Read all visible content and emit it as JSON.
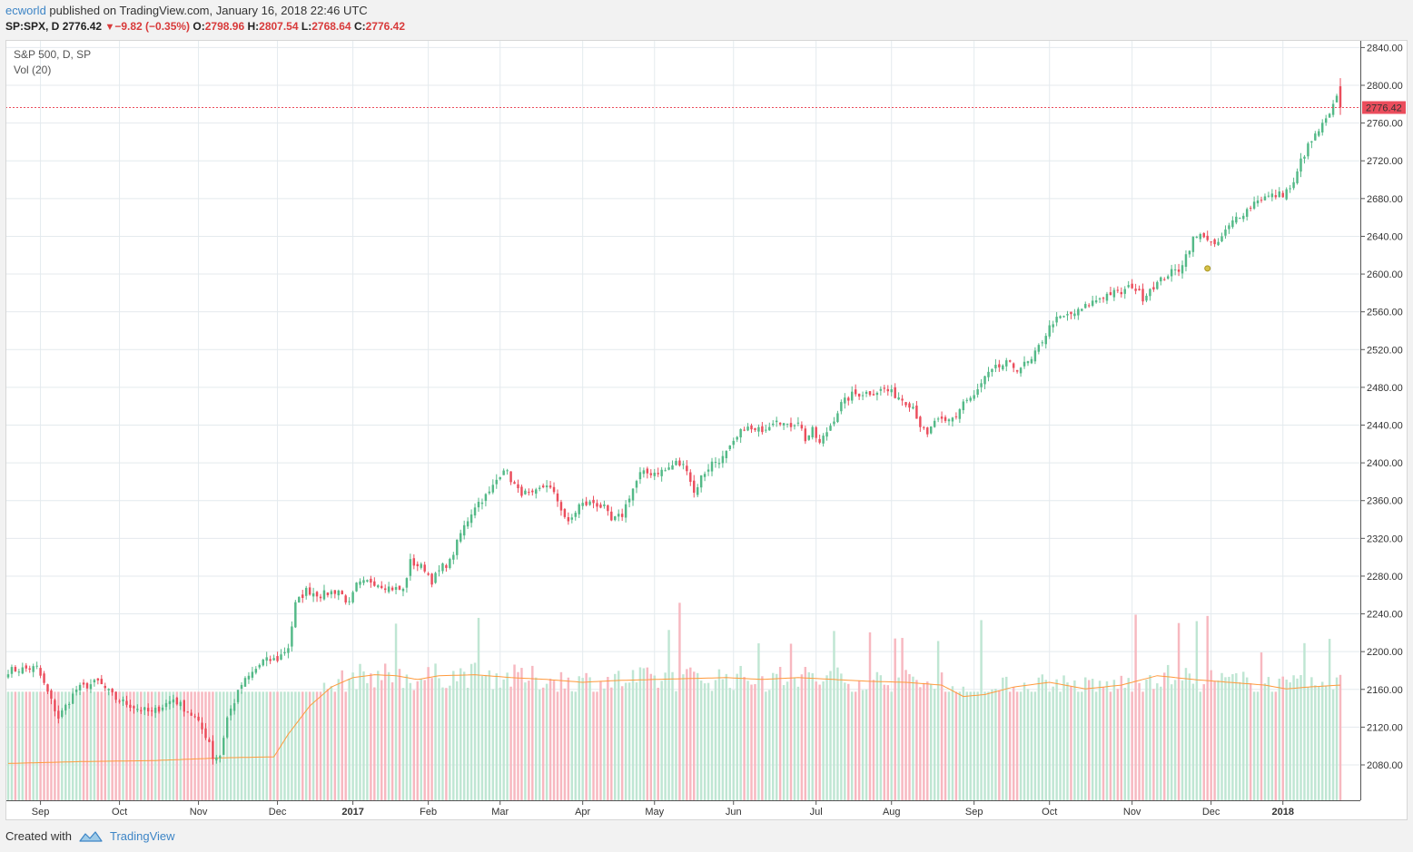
{
  "header": {
    "author": "ecworld",
    "published": " published on TradingView.com, January 16, 2018 22:46 UTC"
  },
  "quote": {
    "symbol": "SP:SPX, D",
    "last": "2776.42",
    "change": "−9.82 (−0.35%)",
    "o_label": "O:",
    "o": "2798.96",
    "h_label": "H:",
    "h": "2807.54",
    "l_label": "L:",
    "l": "2768.64",
    "c_label": "C:",
    "c": "2776.42"
  },
  "legend": {
    "main": "S&P 500, D, SP",
    "vol": "Vol (20)"
  },
  "footer": {
    "created_with": "Created with",
    "brand": "TradingView"
  },
  "colors": {
    "up": "#53b987",
    "down": "#eb4d5c",
    "vol_up": "#bfe6d3",
    "vol_down": "#f7b8c0",
    "ma": "#ff9a3c",
    "grid": "#e4eaee",
    "price_line": "#eb4d5c"
  },
  "chart_data": {
    "type": "candlestick",
    "last_price": 2776.42,
    "y_axis_ticks": [
      2080,
      2120,
      2160,
      2200,
      2240,
      2280,
      2320,
      2360,
      2400,
      2440,
      2480,
      2520,
      2560,
      2600,
      2640,
      2680,
      2720,
      2760,
      2800,
      2840
    ],
    "x_axis_labels": [
      {
        "label": "Sep",
        "index": 9,
        "bold": false
      },
      {
        "label": "Oct",
        "index": 31,
        "bold": false
      },
      {
        "label": "Nov",
        "index": 53,
        "bold": false
      },
      {
        "label": "Dec",
        "index": 75,
        "bold": false
      },
      {
        "label": "2017",
        "index": 96,
        "bold": true
      },
      {
        "label": "Feb",
        "index": 117,
        "bold": false
      },
      {
        "label": "Mar",
        "index": 137,
        "bold": false
      },
      {
        "label": "Apr",
        "index": 160,
        "bold": false
      },
      {
        "label": "May",
        "index": 180,
        "bold": false
      },
      {
        "label": "Jun",
        "index": 202,
        "bold": false
      },
      {
        "label": "Jul",
        "index": 225,
        "bold": false
      },
      {
        "label": "Aug",
        "index": 246,
        "bold": false
      },
      {
        "label": "Sep",
        "index": 269,
        "bold": false
      },
      {
        "label": "Oct",
        "index": 290,
        "bold": false
      },
      {
        "label": "Nov",
        "index": 313,
        "bold": false
      },
      {
        "label": "Dec",
        "index": 335,
        "bold": false
      },
      {
        "label": "2018",
        "index": 355,
        "bold": true
      }
    ],
    "close_anchors": [
      [
        0,
        2180
      ],
      [
        8,
        2183
      ],
      [
        14,
        2130
      ],
      [
        19,
        2160
      ],
      [
        25,
        2168
      ],
      [
        30,
        2150
      ],
      [
        36,
        2140
      ],
      [
        40,
        2135
      ],
      [
        46,
        2150
      ],
      [
        52,
        2130
      ],
      [
        56,
        2105
      ],
      [
        57,
        2088
      ],
      [
        59,
        2090
      ],
      [
        61,
        2130
      ],
      [
        65,
        2165
      ],
      [
        71,
        2190
      ],
      [
        75,
        2192
      ],
      [
        78,
        2205
      ],
      [
        80,
        2250
      ],
      [
        83,
        2265
      ],
      [
        87,
        2260
      ],
      [
        92,
        2265
      ],
      [
        95,
        2250
      ],
      [
        97,
        2270
      ],
      [
        101,
        2275
      ],
      [
        106,
        2268
      ],
      [
        110,
        2265
      ],
      [
        112,
        2295
      ],
      [
        116,
        2288
      ],
      [
        118,
        2275
      ],
      [
        121,
        2290
      ],
      [
        123,
        2295
      ],
      [
        126,
        2325
      ],
      [
        130,
        2355
      ],
      [
        134,
        2368
      ],
      [
        136,
        2382
      ],
      [
        138,
        2395
      ],
      [
        142,
        2370
      ],
      [
        146,
        2365
      ],
      [
        150,
        2378
      ],
      [
        153,
        2360
      ],
      [
        156,
        2335
      ],
      [
        159,
        2355
      ],
      [
        163,
        2358
      ],
      [
        166,
        2352
      ],
      [
        168,
        2338
      ],
      [
        171,
        2345
      ],
      [
        173,
        2365
      ],
      [
        176,
        2388
      ],
      [
        180,
        2390
      ],
      [
        183,
        2392
      ],
      [
        186,
        2400
      ],
      [
        189,
        2395
      ],
      [
        191,
        2368
      ],
      [
        193,
        2385
      ],
      [
        196,
        2400
      ],
      [
        199,
        2405
      ],
      [
        202,
        2420
      ],
      [
        205,
        2438
      ],
      [
        208,
        2433
      ],
      [
        211,
        2438
      ],
      [
        214,
        2448
      ],
      [
        217,
        2438
      ],
      [
        220,
        2445
      ],
      [
        222,
        2425
      ],
      [
        224,
        2434
      ],
      [
        226,
        2420
      ],
      [
        229,
        2440
      ],
      [
        232,
        2462
      ],
      [
        235,
        2472
      ],
      [
        238,
        2474
      ],
      [
        241,
        2475
      ],
      [
        244,
        2478
      ],
      [
        248,
        2470
      ],
      [
        252,
        2460
      ],
      [
        254,
        2440
      ],
      [
        256,
        2428
      ],
      [
        258,
        2445
      ],
      [
        261,
        2442
      ],
      [
        264,
        2450
      ],
      [
        266,
        2465
      ],
      [
        269,
        2470
      ],
      [
        272,
        2490
      ],
      [
        275,
        2500
      ],
      [
        278,
        2505
      ],
      [
        281,
        2500
      ],
      [
        285,
        2508
      ],
      [
        288,
        2530
      ],
      [
        291,
        2550
      ],
      [
        295,
        2556
      ],
      [
        298,
        2560
      ],
      [
        301,
        2568
      ],
      [
        304,
        2575
      ],
      [
        307,
        2580
      ],
      [
        310,
        2580
      ],
      [
        313,
        2588
      ],
      [
        316,
        2575
      ],
      [
        318,
        2585
      ],
      [
        320,
        2590
      ],
      [
        323,
        2600
      ],
      [
        326,
        2605
      ],
      [
        328,
        2620
      ],
      [
        330,
        2637
      ],
      [
        333,
        2642
      ],
      [
        336,
        2628
      ],
      [
        339,
        2645
      ],
      [
        342,
        2660
      ],
      [
        345,
        2668
      ],
      [
        348,
        2680
      ],
      [
        351,
        2682
      ],
      [
        355,
        2685
      ],
      [
        358,
        2695
      ],
      [
        360,
        2720
      ],
      [
        362,
        2735
      ],
      [
        365,
        2752
      ],
      [
        368,
        2768
      ],
      [
        370,
        2786
      ],
      [
        371,
        2776.42
      ]
    ],
    "volume_base": 2140,
    "volume_ma": [
      [
        0,
        2069
      ],
      [
        20,
        2071
      ],
      [
        40,
        2072
      ],
      [
        60,
        2075
      ],
      [
        74,
        2076
      ],
      [
        78,
        2100
      ],
      [
        84,
        2130
      ],
      [
        90,
        2150
      ],
      [
        96,
        2160
      ],
      [
        102,
        2163
      ],
      [
        108,
        2162
      ],
      [
        114,
        2158
      ],
      [
        120,
        2162
      ],
      [
        130,
        2163
      ],
      [
        140,
        2160
      ],
      [
        150,
        2158
      ],
      [
        160,
        2155
      ],
      [
        170,
        2157
      ],
      [
        180,
        2158
      ],
      [
        190,
        2159
      ],
      [
        200,
        2160
      ],
      [
        210,
        2158
      ],
      [
        220,
        2160
      ],
      [
        230,
        2158
      ],
      [
        240,
        2156
      ],
      [
        250,
        2155
      ],
      [
        260,
        2152
      ],
      [
        266,
        2140
      ],
      [
        272,
        2142
      ],
      [
        280,
        2150
      ],
      [
        290,
        2155
      ],
      [
        300,
        2148
      ],
      [
        310,
        2152
      ],
      [
        320,
        2162
      ],
      [
        330,
        2158
      ],
      [
        340,
        2155
      ],
      [
        350,
        2152
      ],
      [
        356,
        2148
      ],
      [
        362,
        2150
      ],
      [
        371,
        2152
      ]
    ],
    "marker_point": {
      "index": 334,
      "value": 2606
    }
  }
}
